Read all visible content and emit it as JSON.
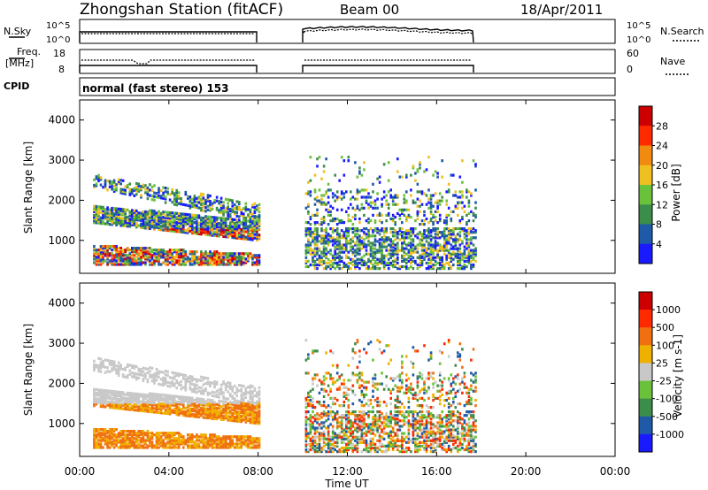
{
  "header": {
    "station": "Zhongshan Station (fitACF)",
    "beam": "Beam 00",
    "date": "18/Apr/2011"
  },
  "panels": {
    "nsky": {
      "left_label": "N.Sky",
      "ticks_left": [
        "10^5",
        "10^0"
      ],
      "ticks_right": [
        "10^5",
        "10^0"
      ],
      "right_label": "N.Search"
    },
    "freq": {
      "left_label_1": "Freq.",
      "left_label_2": "[MHz]",
      "ticks_left": [
        "18",
        "8"
      ],
      "ticks_right": [
        "60",
        "0"
      ],
      "right_label": "Nave"
    },
    "cpid": {
      "label": "CPID",
      "text": "normal (fast stereo) 153"
    }
  },
  "chart_data": [
    {
      "type": "heatmap",
      "quantity": "Power",
      "ylabel": "Slant Range [km]",
      "yticks": [
        "4000",
        "3000",
        "2000",
        "1000"
      ],
      "ylim": [
        180,
        4500
      ],
      "colorbar_label": "Power [dB]",
      "colorbar_ticks": [
        "28",
        "24",
        "20",
        "16",
        "12",
        "8",
        "4"
      ],
      "colors": [
        "#1a1aff",
        "#1e5aa8",
        "#3c8c4a",
        "#6ac23a",
        "#f0c020",
        "#f08a10",
        "#ff2a00",
        "#cc0000"
      ],
      "data_gap_hours": [
        8.0,
        10.0
      ],
      "data_end_hour": 17.7
    },
    {
      "type": "heatmap",
      "quantity": "Velocity",
      "ylabel": "Slant Range [km]",
      "yticks": [
        "4000",
        "3000",
        "2000",
        "1000"
      ],
      "ylim": [
        180,
        4500
      ],
      "colorbar_label": "Velocity [m s-1]",
      "colorbar_ticks": [
        "1000",
        "500",
        "100",
        "25",
        "-25",
        "-100",
        "-500",
        "-1000"
      ],
      "colors": [
        "#1a1aff",
        "#1e5aa8",
        "#3c8c4a",
        "#6ac23a",
        "#c8c8c8",
        "#f0b000",
        "#f07010",
        "#ff2a00",
        "#cc0000"
      ],
      "data_gap_hours": [
        8.0,
        10.0
      ],
      "data_end_hour": 17.7
    }
  ],
  "xaxis": {
    "label": "Time UT",
    "ticks": [
      "00:00",
      "04:00",
      "08:00",
      "12:00",
      "16:00",
      "20:00",
      "00:00"
    ],
    "xlim_hours": [
      0,
      24
    ]
  }
}
